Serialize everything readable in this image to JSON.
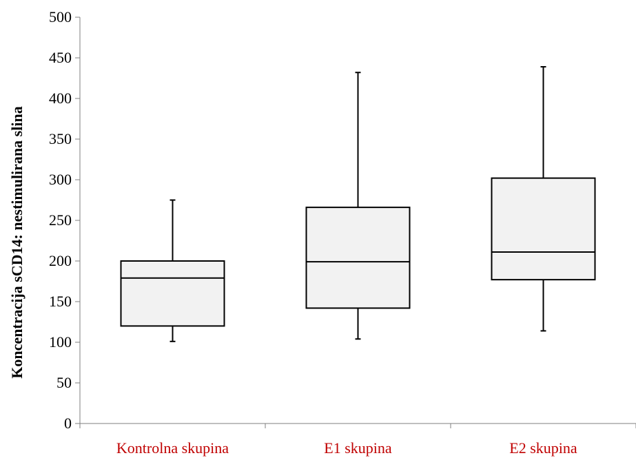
{
  "chart_data": {
    "type": "boxplot",
    "title": "",
    "xlabel": "",
    "ylabel": "Koncentracija sCD14: nestimulirana slina",
    "ylim": [
      0,
      500
    ],
    "yticks": [
      0,
      50,
      100,
      150,
      200,
      250,
      300,
      350,
      400,
      450,
      500
    ],
    "ytick_labels": [
      "0",
      "50",
      "100",
      "150",
      "200",
      "250",
      "300",
      "350",
      "400",
      "450",
      "500"
    ],
    "grid": false,
    "legend": "none",
    "colors": {
      "box_fill": "#f2f2f2",
      "stroke": "#000000",
      "axis": "#7f7f7f",
      "category_label": "#c00000"
    },
    "categories": [
      "Kontrolna skupina",
      "E1 skupina",
      "E2 skupina"
    ],
    "boxes": [
      {
        "min": 101,
        "q1": 120,
        "median": 179,
        "q3": 200,
        "max": 275
      },
      {
        "min": 104,
        "q1": 142,
        "median": 199,
        "q3": 266,
        "max": 432
      },
      {
        "min": 114,
        "q1": 177,
        "median": 211,
        "q3": 302,
        "max": 439
      }
    ]
  }
}
